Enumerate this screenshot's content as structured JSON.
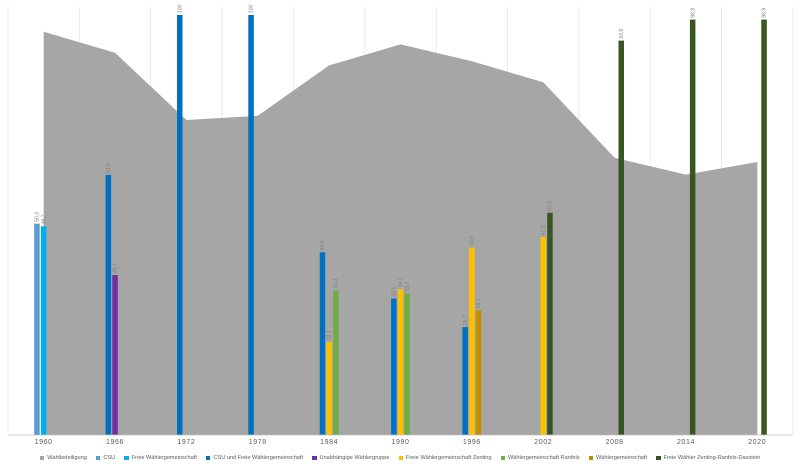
{
  "chart_data": {
    "type": "bar",
    "categories": [
      "1960",
      "1966",
      "1972",
      "1978",
      "1984",
      "1990",
      "1996",
      "2002",
      "2008",
      "2014",
      "2020"
    ],
    "ylim": [
      0,
      100
    ],
    "grid": "vertical",
    "legend_position": "bottom",
    "area": {
      "name": "Wahlbeteiligung",
      "color": "#a6a6a6",
      "values": [
        96,
        91,
        75,
        76,
        88,
        93,
        89,
        84,
        66,
        62,
        65
      ]
    },
    "series": [
      {
        "name": "CSU",
        "color": "#5b9bd5",
        "slot": 0,
        "values": [
          50.3,
          null,
          null,
          null,
          null,
          null,
          null,
          null,
          null,
          null,
          null
        ],
        "labels": [
          "50,3",
          null,
          null,
          null,
          null,
          null,
          null,
          null,
          null,
          null,
          null
        ]
      },
      {
        "name": "Freie Wählergemeinschaft",
        "color": "#00b0f0",
        "slot": 1,
        "values": [
          49.7,
          null,
          null,
          null,
          null,
          null,
          null,
          null,
          null,
          null,
          null
        ],
        "labels": [
          "49,7",
          null,
          null,
          null,
          null,
          null,
          null,
          null,
          null,
          null,
          null
        ]
      },
      {
        "name": "CSU und Freie Wählergemeinschaft",
        "color": "#0070c0",
        "slot": 0,
        "values": [
          null,
          61.9,
          100,
          100,
          43.5,
          32.5,
          25.7,
          null,
          null,
          null,
          null
        ],
        "labels": [
          null,
          "61,9",
          "100",
          "100",
          "43,5",
          "32,5",
          "25,7",
          null,
          null,
          null,
          null
        ]
      },
      {
        "name": "Unabhängige Wählergruppe",
        "color": "#7030a0",
        "slot": 1,
        "values": [
          null,
          38.1,
          null,
          null,
          null,
          null,
          null,
          null,
          null,
          null,
          null
        ],
        "labels": [
          null,
          "38,1",
          null,
          null,
          null,
          null,
          null,
          null,
          null,
          null,
          null
        ]
      },
      {
        "name": "Freie Wählergemeinschaft Zenting",
        "color": "#ffc000",
        "slot": 1,
        "values": [
          null,
          null,
          null,
          null,
          22.1,
          34.7,
          44.6,
          47.1,
          null,
          null,
          null
        ],
        "labels": [
          null,
          null,
          null,
          null,
          "22,1",
          "34,7",
          "44,6",
          "47,1",
          null,
          null,
          null
        ]
      },
      {
        "name": "Wählergemeinschaft Ranfels",
        "color": "#70ad47",
        "slot": 2,
        "values": [
          null,
          null,
          null,
          null,
          34.4,
          33.7,
          null,
          null,
          null,
          null,
          null
        ],
        "labels": [
          null,
          null,
          null,
          null,
          "34,4",
          "33,7",
          null,
          null,
          null,
          null,
          null
        ]
      },
      {
        "name": "Wählergemeinschaft",
        "color": "#bf8f00",
        "slot": 2,
        "values": [
          null,
          null,
          null,
          null,
          null,
          null,
          29.7,
          null,
          null,
          null,
          null
        ],
        "labels": [
          null,
          null,
          null,
          null,
          null,
          null,
          "29,7",
          null,
          null,
          null,
          null
        ]
      },
      {
        "name": "Freie Wähler Zenting-Ranfels-Daxstein",
        "color": "#375623",
        "slot": 2,
        "values": [
          null,
          null,
          null,
          null,
          null,
          null,
          null,
          52.9,
          93.9,
          98.9,
          98.9
        ],
        "labels": [
          null,
          null,
          null,
          null,
          null,
          null,
          null,
          "52,9",
          "93,9",
          "98,9",
          "98,9"
        ]
      }
    ]
  }
}
